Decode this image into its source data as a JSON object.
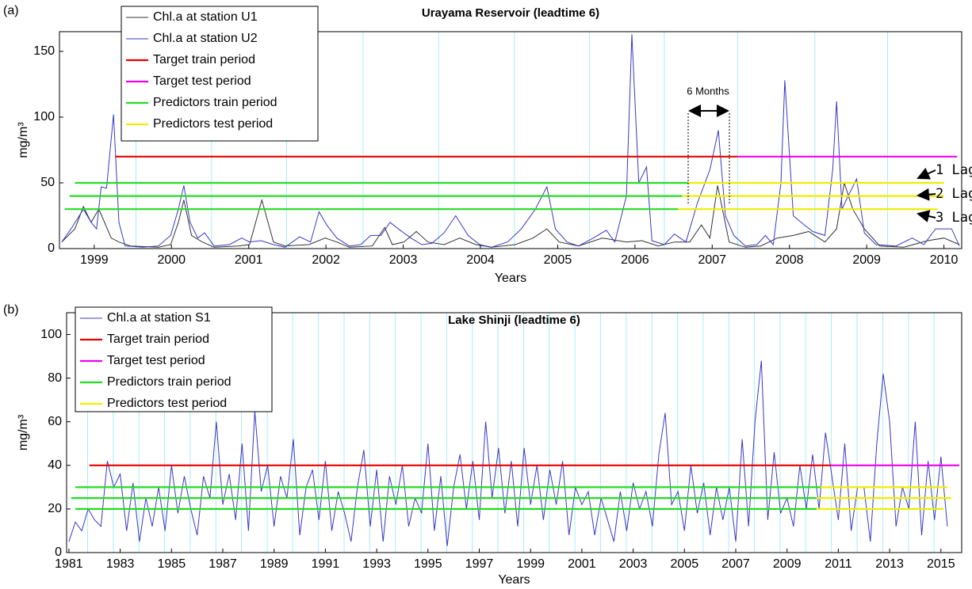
{
  "chart_data": [
    {
      "type": "line",
      "panel_label": "(a)",
      "title": "Urayama Reservoir (leadtime 6)",
      "xlabel": "Years",
      "ylabel": "mg/m³",
      "xlim": [
        1998.55,
        2010.23
      ],
      "ylim": [
        0,
        165
      ],
      "xticks": [
        1999,
        2000,
        2001,
        2002,
        2003,
        2004,
        2005,
        2006,
        2007,
        2008,
        2009,
        2010
      ],
      "yticks": [
        0,
        50,
        100,
        150
      ],
      "cyan_lines": [
        1999.54,
        2000.52,
        2001.49,
        2002.48,
        2003.46,
        2004.44,
        2005.41,
        2006.38,
        2007.33,
        2008.33,
        2009.27
      ],
      "cyan_color": "#a8eef2",
      "annotations": [
        "6 Months",
        "1 Lag",
        "2 Lag",
        "3 Lag"
      ],
      "series": [
        {
          "name": "Chl.a at station U1",
          "color": "#333333",
          "x": [
            1998.58,
            1998.75,
            1998.86,
            1998.96,
            1999.06,
            1999.22,
            1999.32,
            1999.47,
            1999.83,
            1999.99,
            2000.09,
            2000.16,
            2000.26,
            2000.4,
            2000.55,
            2000.86,
            2001.01,
            2001.17,
            2001.32,
            2001.47,
            2001.78,
            2001.99,
            2002.14,
            2002.3,
            2002.6,
            2002.76,
            2002.86,
            2003.01,
            2003.17,
            2003.32,
            2003.53,
            2003.73,
            2003.94,
            2004.14,
            2004.45,
            2004.68,
            2004.86,
            2005.02,
            2005.27,
            2005.58,
            2005.89,
            2006.09,
            2006.3,
            2006.51,
            2006.71,
            2006.86,
            2006.97,
            2007.07,
            2007.22,
            2007.43,
            2007.63,
            2007.84,
            2008.05,
            2008.25,
            2008.46,
            2008.61,
            2008.71,
            2008.82,
            2008.97,
            2009.17,
            2009.48,
            2009.79,
            2010.0,
            2010.2
          ],
          "values": [
            5,
            15,
            32,
            20,
            30,
            8,
            5,
            2,
            1,
            3,
            20,
            37,
            10,
            5,
            1,
            2,
            3,
            37,
            5,
            2,
            3,
            8,
            5,
            1,
            2,
            16,
            3,
            5,
            13,
            5,
            3,
            8,
            3,
            1,
            3,
            8,
            15,
            5,
            2,
            8,
            5,
            6,
            2,
            5,
            5,
            18,
            8,
            48,
            5,
            1,
            2,
            8,
            10,
            13,
            5,
            15,
            50,
            30,
            15,
            2,
            1,
            6,
            8,
            3
          ]
        },
        {
          "name": "Chl.a at station U2",
          "color": "#3838c8",
          "x": [
            1998.58,
            1998.7,
            1998.86,
            1998.96,
            1999.03,
            1999.09,
            1999.16,
            1999.25,
            1999.32,
            1999.4,
            1999.63,
            1999.83,
            1999.99,
            2000.09,
            2000.16,
            2000.24,
            2000.34,
            2000.43,
            2000.55,
            2000.75,
            2000.91,
            2001.01,
            2001.16,
            2001.32,
            2001.47,
            2001.66,
            2001.8,
            2001.91,
            2002.01,
            2002.14,
            2002.3,
            2002.45,
            2002.58,
            2002.71,
            2002.83,
            2002.96,
            2003.1,
            2003.24,
            2003.37,
            2003.53,
            2003.68,
            2003.84,
            2003.99,
            2004.14,
            2004.35,
            2004.53,
            2004.71,
            2004.86,
            2004.97,
            2005.12,
            2005.27,
            2005.46,
            2005.63,
            2005.74,
            2005.89,
            2005.96,
            2006.05,
            2006.15,
            2006.22,
            2006.38,
            2006.51,
            2006.66,
            2006.81,
            2006.97,
            2007.08,
            2007.17,
            2007.28,
            2007.43,
            2007.58,
            2007.69,
            2007.79,
            2007.89,
            2007.94,
            2008.05,
            2008.15,
            2008.3,
            2008.46,
            2008.56,
            2008.61,
            2008.68,
            2008.76,
            2008.87,
            2008.97,
            2009.12,
            2009.38,
            2009.59,
            2009.74,
            2009.89,
            2010.1,
            2010.2
          ],
          "values": [
            5,
            15,
            30,
            20,
            15,
            47,
            46,
            102,
            20,
            2,
            1,
            2,
            10,
            30,
            48,
            20,
            8,
            12,
            2,
            3,
            8,
            5,
            6,
            3,
            1,
            9,
            5,
            28,
            18,
            8,
            2,
            3,
            10,
            10,
            20,
            14,
            8,
            3,
            4,
            12,
            25,
            10,
            3,
            1,
            5,
            15,
            30,
            47,
            15,
            5,
            2,
            8,
            14,
            5,
            40,
            163,
            50,
            62,
            6,
            3,
            11,
            5,
            35,
            60,
            90,
            25,
            10,
            2,
            3,
            10,
            3,
            50,
            128,
            25,
            20,
            13,
            10,
            60,
            112,
            30,
            40,
            53,
            12,
            3,
            2,
            8,
            3,
            15,
            15,
            2
          ]
        },
        {
          "name": "Target train period",
          "color": "#e60000",
          "segments": [
            {
              "x": [
                1999.27,
                2007.33
              ],
              "values": [
                70,
                70
              ]
            }
          ]
        },
        {
          "name": "Target test period",
          "color": "#ee00ee",
          "segments": [
            {
              "x": [
                2007.33,
                2010.17
              ],
              "values": [
                70,
                70
              ]
            }
          ]
        },
        {
          "name": "Predictors train period",
          "color": "#22dd22",
          "segments": [
            {
              "x": [
                1998.75,
                2006.69
              ],
              "values": [
                50,
                50
              ]
            },
            {
              "x": [
                1998.68,
                2006.61
              ],
              "values": [
                40,
                40
              ]
            },
            {
              "x": [
                1998.62,
                2006.56
              ],
              "values": [
                30,
                30
              ]
            }
          ]
        },
        {
          "name": "Predictors test period",
          "color": "#eeee00",
          "segments": [
            {
              "x": [
                2006.69,
                2010.0
              ],
              "values": [
                50,
                50
              ]
            },
            {
              "x": [
                2006.61,
                2010.0
              ],
              "values": [
                40,
                40
              ]
            },
            {
              "x": [
                2006.56,
                2009.92
              ],
              "values": [
                30,
                30
              ]
            }
          ]
        }
      ]
    },
    {
      "type": "line",
      "panel_label": "(b)",
      "title": "Lake Shinji (leadtime 6)",
      "xlabel": "Years",
      "ylabel": "mg/m³",
      "xlim": [
        1980.91,
        2015.81
      ],
      "ylim": [
        0,
        110
      ],
      "xticks": [
        1981,
        1983,
        1985,
        1987,
        1989,
        1991,
        1993,
        1995,
        1997,
        1999,
        2001,
        2003,
        2005,
        2007,
        2009,
        2011,
        2013,
        2015
      ],
      "yticks": [
        0,
        20,
        40,
        60,
        80,
        100
      ],
      "cyan_lines": [
        1981.73,
        1982.73,
        1983.73,
        1984.73,
        1985.73,
        1986.73,
        1987.73,
        1988.73,
        1989.73,
        1990.73,
        1991.73,
        1992.73,
        1993.73,
        1994.73,
        1995.73,
        1996.73,
        1997.73,
        1998.73,
        1999.73,
        2000.73,
        2001.73,
        2002.73,
        2003.73,
        2004.73,
        2005.73,
        2006.73,
        2007.73,
        2008.73,
        2009.73,
        2010.73,
        2011.73,
        2012.73,
        2013.73,
        2014.73
      ],
      "cyan_color": "#a8eef2",
      "series": [
        {
          "name": "Chl.a at station S1",
          "color": "#3838c8",
          "x": [
            1981.0,
            1981.25,
            1981.5,
            1981.75,
            1982.0,
            1982.25,
            1982.5,
            1982.75,
            1983.0,
            1983.25,
            1983.5,
            1983.75,
            1984.0,
            1984.25,
            1984.5,
            1984.75,
            1985.0,
            1985.25,
            1985.5,
            1985.75,
            1986.0,
            1986.25,
            1986.5,
            1986.75,
            1987.0,
            1987.25,
            1987.5,
            1987.75,
            1988.0,
            1988.25,
            1988.5,
            1988.75,
            1989.0,
            1989.25,
            1989.5,
            1989.75,
            1990.0,
            1990.25,
            1990.5,
            1990.75,
            1991.0,
            1991.25,
            1991.5,
            1991.75,
            1992.0,
            1992.25,
            1992.5,
            1992.75,
            1993.0,
            1993.25,
            1993.5,
            1993.75,
            1994.0,
            1994.25,
            1994.5,
            1994.75,
            1995.0,
            1995.25,
            1995.5,
            1995.75,
            1996.0,
            1996.25,
            1996.5,
            1996.75,
            1997.0,
            1997.25,
            1997.5,
            1997.75,
            1998.0,
            1998.25,
            1998.5,
            1998.75,
            1999.0,
            1999.25,
            1999.5,
            1999.75,
            2000.0,
            2000.25,
            2000.5,
            2000.75,
            2001.0,
            2001.25,
            2001.5,
            2001.75,
            2002.0,
            2002.25,
            2002.5,
            2002.75,
            2003.0,
            2003.25,
            2003.5,
            2003.75,
            2004.0,
            2004.25,
            2004.5,
            2004.75,
            2005.0,
            2005.25,
            2005.5,
            2005.75,
            2006.0,
            2006.25,
            2006.5,
            2006.75,
            2007.0,
            2007.25,
            2007.5,
            2007.75,
            2008.0,
            2008.25,
            2008.5,
            2008.75,
            2009.0,
            2009.25,
            2009.5,
            2009.75,
            2010.0,
            2010.25,
            2010.5,
            2010.75,
            2011.0,
            2011.25,
            2011.5,
            2011.75,
            2012.0,
            2012.25,
            2012.5,
            2012.75,
            2013.0,
            2013.25,
            2013.5,
            2013.75,
            2014.0,
            2014.25,
            2014.5,
            2014.75,
            2015.0,
            2015.25
          ],
          "values": [
            5,
            14,
            10,
            20,
            15,
            12,
            42,
            30,
            36,
            10,
            32,
            5,
            25,
            12,
            30,
            10,
            40,
            18,
            35,
            20,
            8,
            35,
            25,
            60,
            22,
            36,
            15,
            50,
            10,
            65,
            28,
            40,
            12,
            35,
            25,
            52,
            8,
            30,
            38,
            15,
            42,
            10,
            28,
            18,
            5,
            30,
            47,
            12,
            38,
            5,
            35,
            22,
            40,
            12,
            25,
            18,
            50,
            10,
            35,
            3,
            30,
            45,
            20,
            42,
            15,
            60,
            25,
            48,
            18,
            42,
            12,
            48,
            22,
            40,
            15,
            38,
            22,
            42,
            8,
            30,
            22,
            28,
            8,
            25,
            15,
            5,
            28,
            10,
            32,
            20,
            28,
            12,
            45,
            64,
            22,
            28,
            10,
            40,
            18,
            32,
            8,
            30,
            15,
            30,
            5,
            52,
            12,
            60,
            88,
            15,
            46,
            18,
            25,
            12,
            40,
            20,
            45,
            20,
            55,
            35,
            15,
            50,
            10,
            30,
            30,
            5,
            50,
            82,
            60,
            12,
            30,
            20,
            60,
            8,
            42,
            15,
            44,
            12
          ]
        },
        {
          "name": "Target train period",
          "color": "#e60000",
          "segments": [
            {
              "x": [
                1981.8,
                2010.71
              ],
              "values": [
                40,
                40
              ]
            }
          ]
        },
        {
          "name": "Target test period",
          "color": "#ee00ee",
          "segments": [
            {
              "x": [
                2010.71,
                2015.71
              ],
              "values": [
                40,
                40
              ]
            }
          ]
        },
        {
          "name": "Predictors train period",
          "color": "#22dd22",
          "segments": [
            {
              "x": [
                1981.25,
                2010.3
              ],
              "values": [
                30,
                30
              ]
            },
            {
              "x": [
                1981.09,
                2010.15
              ],
              "values": [
                25,
                25
              ]
            },
            {
              "x": [
                1981.25,
                2010.15
              ],
              "values": [
                20,
                20
              ]
            }
          ]
        },
        {
          "name": "Predictors test period",
          "color": "#eeee00",
          "segments": [
            {
              "x": [
                2010.3,
                2015.25
              ],
              "values": [
                30,
                30
              ]
            },
            {
              "x": [
                2010.15,
                2015.4
              ],
              "values": [
                25,
                25
              ]
            },
            {
              "x": [
                2010.15,
                2015.1
              ],
              "values": [
                20,
                20
              ]
            }
          ]
        }
      ]
    }
  ]
}
